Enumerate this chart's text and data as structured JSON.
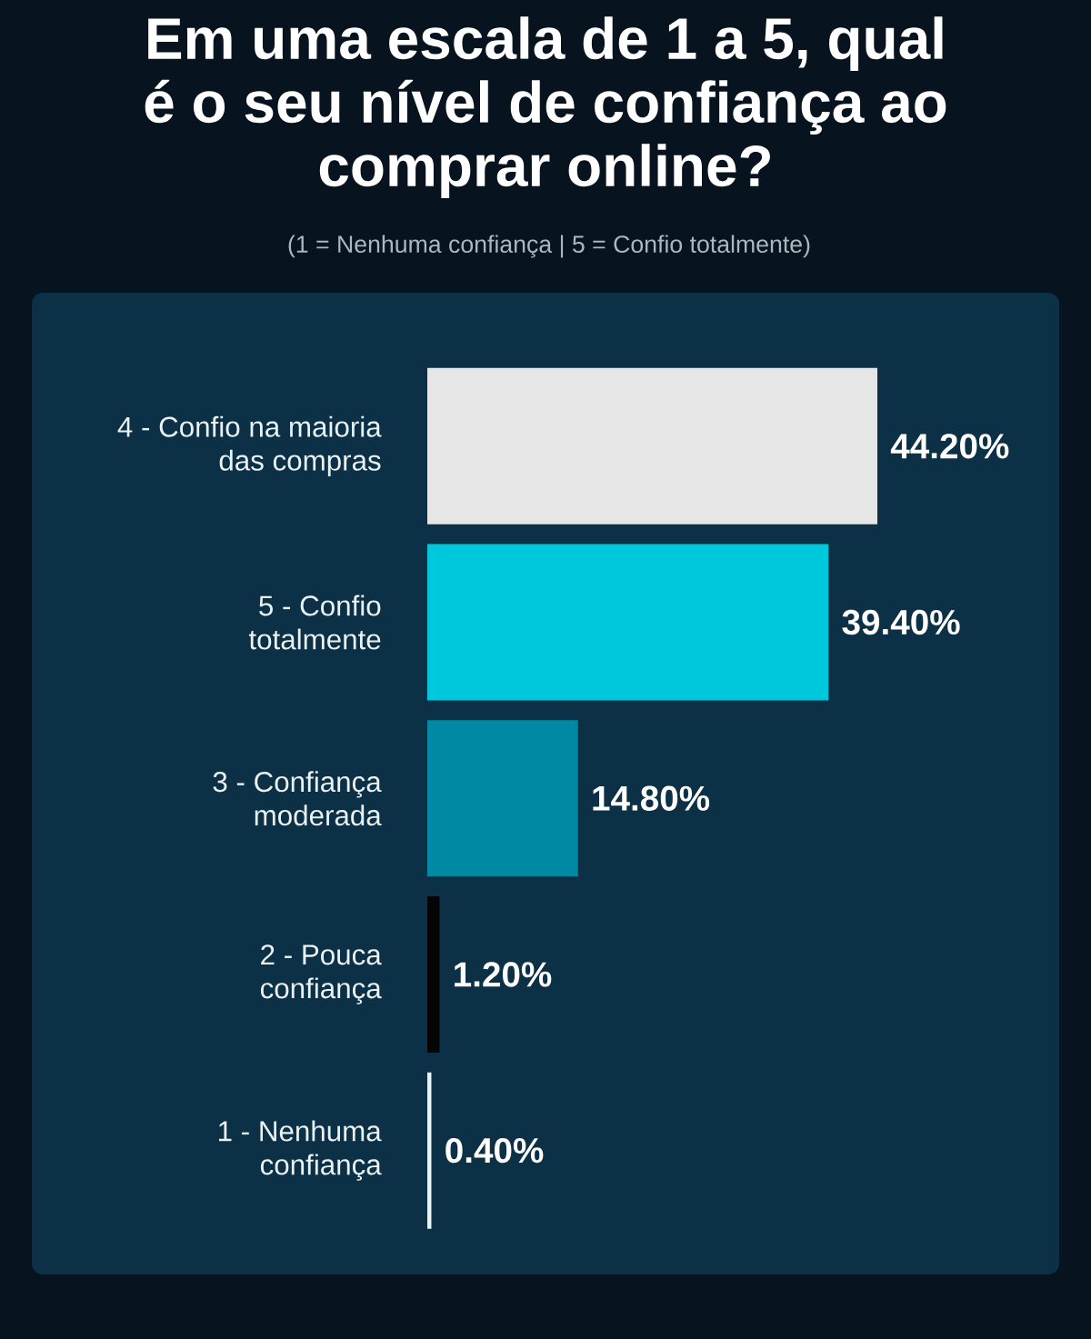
{
  "chart_data": {
    "type": "bar",
    "orientation": "horizontal",
    "title": "Em uma escala de 1 a 5, qual é o seu nível de confiança ao comprar online?",
    "subtitle": "(1 = Nenhuma confiança | 5 = Confio totalmente)",
    "categories": [
      "4 - Confio na maioria das compras",
      "5 - Confio totalmente",
      "3 - Confiança moderada",
      "2 - Pouca confiança",
      "1 - Nenhuma confiança"
    ],
    "values": [
      44.2,
      39.4,
      14.8,
      1.2,
      0.4
    ],
    "colors": [
      "#e6e6e6",
      "#00c8dc",
      "#0089a3",
      "#050505",
      "#e6f4f4"
    ],
    "value_labels": [
      "44.20%",
      "39.40%",
      "14.80%",
      "1.20%",
      "0.40%"
    ],
    "tick_labels": "y"
  }
}
